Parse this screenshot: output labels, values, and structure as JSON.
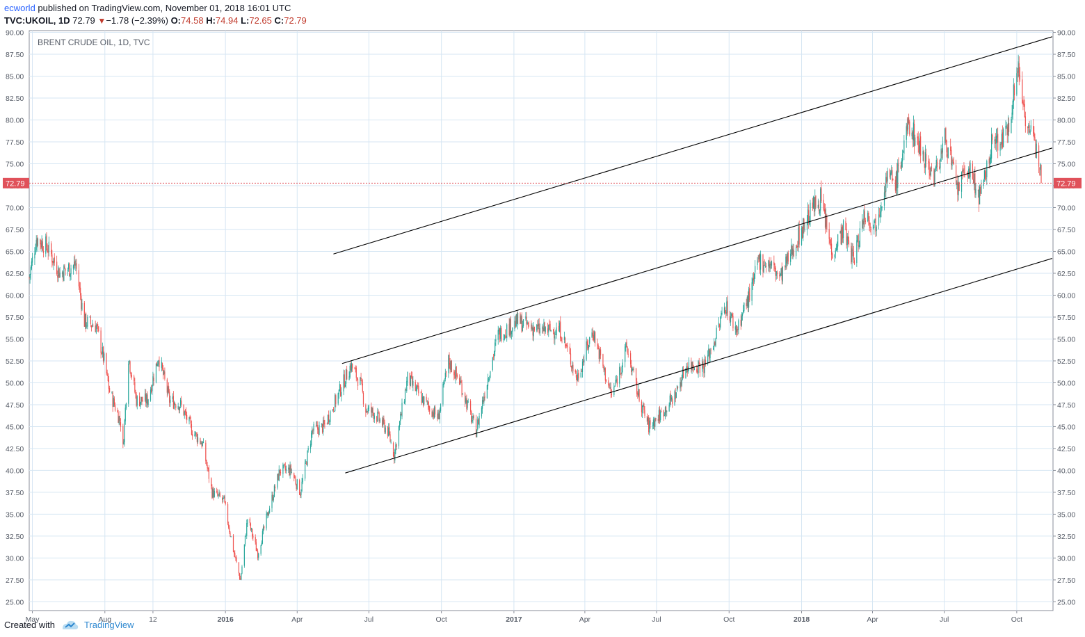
{
  "header": {
    "author": "ecworld",
    "published_text": " published on TradingView.com, November 01, 2018 16:01 UTC",
    "symbol": "TVC:UKOIL, 1D",
    "last": "72.79",
    "arrow": "▼",
    "change": "−1.78 (−2.39%)",
    "o_label": "O:",
    "o_val": "74.58",
    "h_label": "H:",
    "h_val": "74.94",
    "l_label": "L:",
    "l_val": "72.65",
    "c_label": "C:",
    "c_val": "72.79"
  },
  "footer": {
    "created_with": "Created with",
    "brand": "TradingView"
  },
  "colors": {
    "up": "#26a69a",
    "down": "#ef5350",
    "grid": "#d6e6f3",
    "price_line": "#e0515a",
    "price_badge": "#e0515a",
    "channel": "#000000"
  },
  "chart_data": {
    "type": "candlestick",
    "title": "BRENT CRUDE OIL, 1D, TVC",
    "ylim": [
      24,
      90.2
    ],
    "y_ticks": [
      "25.00",
      "27.50",
      "30.00",
      "32.50",
      "35.00",
      "37.50",
      "40.00",
      "42.50",
      "45.00",
      "47.50",
      "50.00",
      "52.50",
      "55.00",
      "57.50",
      "60.00",
      "62.50",
      "65.00",
      "67.50",
      "70.00",
      "72.50",
      "75.00",
      "77.50",
      "80.00",
      "82.50",
      "85.00",
      "87.50",
      "90.00"
    ],
    "x_ticks": [
      {
        "label": "May",
        "date": "2015-05-01",
        "bold": false
      },
      {
        "label": "Aug",
        "date": "2015-08-01",
        "bold": false
      },
      {
        "label": "12",
        "date": "2015-10-01",
        "bold": false
      },
      {
        "label": "2016",
        "date": "2016-01-01",
        "bold": true
      },
      {
        "label": "Apr",
        "date": "2016-04-01",
        "bold": false
      },
      {
        "label": "Jul",
        "date": "2016-07-01",
        "bold": false
      },
      {
        "label": "Oct",
        "date": "2016-10-01",
        "bold": false
      },
      {
        "label": "2017",
        "date": "2017-01-01",
        "bold": true
      },
      {
        "label": "Apr",
        "date": "2017-04-01",
        "bold": false
      },
      {
        "label": "Jul",
        "date": "2017-07-01",
        "bold": false
      },
      {
        "label": "Oct",
        "date": "2017-10-01",
        "bold": false
      },
      {
        "label": "2018",
        "date": "2018-01-01",
        "bold": true
      },
      {
        "label": "Apr",
        "date": "2018-04-01",
        "bold": false
      },
      {
        "label": "Jul",
        "date": "2018-07-01",
        "bold": false
      },
      {
        "label": "Oct",
        "date": "2018-10-01",
        "bold": false
      }
    ],
    "x_range": [
      "2015-04-27",
      "2018-11-16"
    ],
    "last_price": 72.79,
    "last_price_label": "72.79",
    "path_points": [
      [
        "2015-04-27",
        62.0
      ],
      [
        "2015-05-06",
        66.5
      ],
      [
        "2015-05-20",
        65.5
      ],
      [
        "2015-06-05",
        62.5
      ],
      [
        "2015-06-25",
        63.5
      ],
      [
        "2015-07-06",
        57.0
      ],
      [
        "2015-07-21",
        56.5
      ],
      [
        "2015-07-31",
        52.5
      ],
      [
        "2015-08-07",
        49.0
      ],
      [
        "2015-08-21",
        45.5
      ],
      [
        "2015-08-24",
        42.5
      ],
      [
        "2015-08-31",
        53.0
      ],
      [
        "2015-09-10",
        48.0
      ],
      [
        "2015-09-24",
        48.0
      ],
      [
        "2015-10-08",
        53.0
      ],
      [
        "2015-10-22",
        48.0
      ],
      [
        "2015-11-05",
        47.5
      ],
      [
        "2015-11-20",
        44.5
      ],
      [
        "2015-12-03",
        43.0
      ],
      [
        "2015-12-15",
        37.5
      ],
      [
        "2015-12-30",
        36.5
      ],
      [
        "2016-01-12",
        30.5
      ],
      [
        "2016-01-20",
        27.5
      ],
      [
        "2016-01-29",
        34.5
      ],
      [
        "2016-02-11",
        30.5
      ],
      [
        "2016-02-25",
        35.5
      ],
      [
        "2016-03-10",
        40.0
      ],
      [
        "2016-03-24",
        40.0
      ],
      [
        "2016-04-05",
        37.5
      ],
      [
        "2016-04-20",
        44.5
      ],
      [
        "2016-05-05",
        45.0
      ],
      [
        "2016-05-20",
        48.0
      ],
      [
        "2016-06-08",
        52.0
      ],
      [
        "2016-06-20",
        50.0
      ],
      [
        "2016-06-27",
        47.0
      ],
      [
        "2016-07-08",
        46.5
      ],
      [
        "2016-07-25",
        44.5
      ],
      [
        "2016-08-02",
        41.8
      ],
      [
        "2016-08-19",
        50.5
      ],
      [
        "2016-09-08",
        48.0
      ],
      [
        "2016-09-27",
        46.0
      ],
      [
        "2016-10-10",
        52.5
      ],
      [
        "2016-10-25",
        50.0
      ],
      [
        "2016-11-08",
        46.0
      ],
      [
        "2016-11-14",
        44.5
      ],
      [
        "2016-11-30",
        51.0
      ],
      [
        "2016-12-12",
        55.5
      ],
      [
        "2017-01-06",
        57.0
      ],
      [
        "2017-02-01",
        56.0
      ],
      [
        "2017-03-01",
        56.0
      ],
      [
        "2017-03-22",
        50.5
      ],
      [
        "2017-04-11",
        56.0
      ],
      [
        "2017-04-25",
        51.5
      ],
      [
        "2017-05-05",
        48.5
      ],
      [
        "2017-05-24",
        54.0
      ],
      [
        "2017-06-08",
        48.5
      ],
      [
        "2017-06-21",
        45.0
      ],
      [
        "2017-07-07",
        46.5
      ],
      [
        "2017-07-24",
        48.5
      ],
      [
        "2017-08-08",
        52.0
      ],
      [
        "2017-08-31",
        52.0
      ],
      [
        "2017-09-15",
        55.5
      ],
      [
        "2017-09-26",
        59.0
      ],
      [
        "2017-10-10",
        56.0
      ],
      [
        "2017-10-31",
        61.0
      ],
      [
        "2017-11-07",
        64.0
      ],
      [
        "2017-11-22",
        63.5
      ],
      [
        "2017-12-05",
        62.0
      ],
      [
        "2017-12-27",
        66.5
      ],
      [
        "2018-01-15",
        70.0
      ],
      [
        "2018-01-25",
        71.0
      ],
      [
        "2018-02-08",
        65.0
      ],
      [
        "2018-02-23",
        67.5
      ],
      [
        "2018-03-08",
        64.0
      ],
      [
        "2018-03-22",
        69.5
      ],
      [
        "2018-04-04",
        68.0
      ],
      [
        "2018-04-19",
        73.5
      ],
      [
        "2018-05-01",
        73.0
      ],
      [
        "2018-05-17",
        79.5
      ],
      [
        "2018-05-31",
        77.0
      ],
      [
        "2018-06-18",
        73.5
      ],
      [
        "2018-07-03",
        78.0
      ],
      [
        "2018-07-17",
        72.0
      ],
      [
        "2018-07-31",
        74.5
      ],
      [
        "2018-08-16",
        71.0
      ],
      [
        "2018-08-31",
        77.5
      ],
      [
        "2018-09-17",
        78.0
      ],
      [
        "2018-10-03",
        86.0
      ],
      [
        "2018-10-12",
        80.5
      ],
      [
        "2018-10-25",
        76.5
      ],
      [
        "2018-10-31",
        75.5
      ],
      [
        "2018-11-01",
        72.79
      ]
    ],
    "channel_lines": [
      {
        "start": [
          "2016-05-17",
          64.7
        ],
        "end": [
          "2018-11-15",
          89.5
        ]
      },
      {
        "start": [
          "2016-05-28",
          52.2
        ],
        "end": [
          "2018-11-15",
          76.8
        ]
      },
      {
        "start": [
          "2016-06-01",
          39.7
        ],
        "end": [
          "2018-11-15",
          64.2
        ]
      }
    ]
  }
}
